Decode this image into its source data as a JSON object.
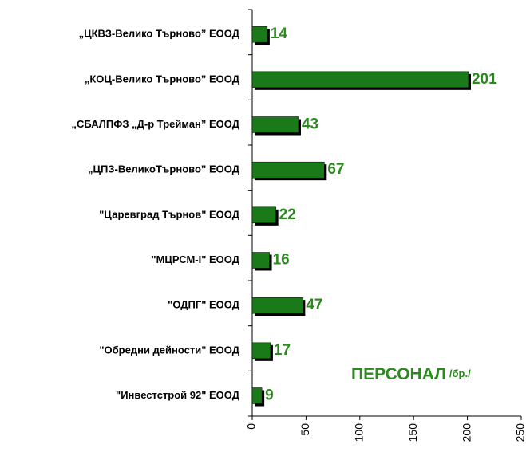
{
  "chart_data": {
    "type": "bar",
    "orientation": "horizontal",
    "title": "ПЕРСОНАЛ",
    "subtitle": "/бр./",
    "categories": [
      "„ЦКВЗ-Велико Търново” ЕООД",
      "„КОЦ-Велико Търново” ЕООД",
      "„СБАЛПФЗ „Д-р Трейман” ЕООД",
      "„ЦПЗ-ВеликоТърново” ЕООД",
      "\"Царевград Търнов\" ЕООД",
      "\"МЦРСМ-І\" ЕООД",
      "\"ОДПГ\" ЕООД",
      "\"Обредни дейности\" ЕООД",
      "\"Инвестстрой 92\" ЕООД"
    ],
    "values": [
      14,
      201,
      43,
      67,
      22,
      16,
      47,
      17,
      9
    ],
    "color": "#1a7a1a",
    "label_color": "#2a8a1e",
    "xlim": [
      0,
      250
    ],
    "xticks": [
      0,
      50,
      100,
      150,
      200,
      250
    ],
    "grid": false
  }
}
